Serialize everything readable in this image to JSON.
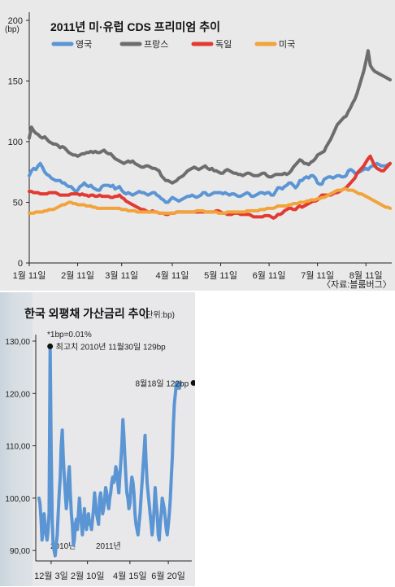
{
  "chart_data": [
    {
      "type": "line",
      "title": "2011년 미·유럽 CDS 프리미엄 추이",
      "unit_label": "(bp)",
      "source": "〈자료:블룸버그〉",
      "ylim": [
        0,
        200
      ],
      "yticks": [
        0,
        50,
        100,
        150,
        200
      ],
      "x_tick_labels": [
        "1월 11일",
        "2월 11일",
        "3월 11일",
        "4월 11일",
        "5월 11일",
        "6월 11일",
        "7월 11일",
        "8월 11일"
      ],
      "x_tick_index": [
        0,
        22,
        42,
        65,
        87,
        109,
        131,
        153
      ],
      "legend_position": "top",
      "grid": false,
      "series": [
        {
          "name": "영국",
          "color": "#5b95d3",
          "values": [
            72,
            76,
            78,
            77,
            80,
            82,
            79,
            75,
            73,
            72,
            70,
            69,
            68,
            68,
            68,
            66,
            66,
            64,
            63,
            63,
            61,
            59,
            60,
            63,
            64,
            66,
            64,
            63,
            64,
            62,
            61,
            60,
            60,
            63,
            64,
            64,
            64,
            63,
            64,
            61,
            62,
            63,
            60,
            58,
            57,
            58,
            57,
            56,
            57,
            58,
            59,
            58,
            58,
            57,
            56,
            57,
            58,
            58,
            56,
            55,
            53,
            52,
            50,
            50,
            52,
            54,
            53,
            52,
            51,
            52,
            53,
            54,
            55,
            55,
            56,
            55,
            54,
            55,
            56,
            58,
            58,
            56,
            56,
            57,
            58,
            58,
            58,
            58,
            57,
            58,
            57,
            56,
            57,
            57,
            56,
            55,
            55,
            56,
            57,
            58,
            57,
            55,
            55,
            56,
            57,
            58,
            58,
            57,
            58,
            58,
            56,
            56,
            59,
            62,
            62,
            61,
            63,
            64,
            66,
            66,
            64,
            62,
            64,
            68,
            68,
            70,
            71,
            70,
            72,
            72,
            70,
            66,
            65,
            65,
            69,
            70,
            71,
            71,
            70,
            71,
            72,
            72,
            71,
            71,
            72,
            76,
            77,
            76,
            74,
            74,
            75,
            76,
            77,
            78,
            77,
            79,
            80,
            81,
            82,
            81,
            80,
            80,
            80,
            81,
            82
          ]
        },
        {
          "name": "프랑스",
          "color": "#6d6d6d",
          "values": [
            103,
            112,
            109,
            107,
            106,
            104,
            103,
            104,
            102,
            100,
            99,
            98,
            98,
            97,
            95,
            96,
            95,
            93,
            91,
            90,
            89,
            89,
            88,
            89,
            90,
            90,
            91,
            91,
            92,
            91,
            92,
            91,
            91,
            92,
            93,
            91,
            90,
            90,
            88,
            86,
            85,
            84,
            83,
            82,
            83,
            84,
            83,
            84,
            82,
            81,
            80,
            79,
            79,
            80,
            80,
            79,
            78,
            78,
            77,
            76,
            72,
            70,
            68,
            68,
            67,
            66,
            67,
            68,
            70,
            71,
            72,
            74,
            76,
            77,
            78,
            79,
            78,
            77,
            78,
            79,
            80,
            78,
            77,
            78,
            76,
            76,
            75,
            74,
            74,
            76,
            77,
            76,
            75,
            74,
            74,
            73,
            73,
            72,
            73,
            74,
            74,
            73,
            72,
            72,
            72,
            73,
            74,
            74,
            72,
            71,
            71,
            72,
            73,
            73,
            73,
            73,
            74,
            73,
            74,
            76,
            79,
            81,
            83,
            85,
            84,
            82,
            82,
            81,
            83,
            84,
            86,
            89,
            90,
            91,
            92,
            96,
            99,
            102,
            106,
            110,
            114,
            116,
            118,
            120,
            121,
            125,
            128,
            132,
            135,
            140,
            146,
            152,
            158,
            166,
            175,
            163,
            160,
            158,
            157,
            156,
            155,
            154,
            153,
            152,
            151
          ]
        },
        {
          "name": "독일",
          "color": "#e23a32",
          "values": [
            59,
            59,
            58,
            58,
            58,
            57,
            57,
            57,
            57,
            58,
            58,
            58,
            58,
            57,
            56,
            56,
            56,
            56,
            56,
            57,
            57,
            57,
            57,
            56,
            57,
            56,
            56,
            55,
            56,
            56,
            55,
            55,
            56,
            55,
            55,
            55,
            55,
            54,
            54,
            55,
            55,
            56,
            54,
            53,
            51,
            50,
            49,
            48,
            47,
            46,
            45,
            44,
            44,
            43,
            42,
            42,
            43,
            42,
            42,
            41,
            41,
            41,
            40,
            40,
            41,
            41,
            41,
            42,
            42,
            42,
            42,
            42,
            42,
            42,
            42,
            42,
            42,
            42,
            42,
            42,
            42,
            42,
            42,
            42,
            42,
            43,
            43,
            42,
            41,
            41,
            40,
            40,
            40,
            41,
            41,
            41,
            40,
            40,
            40,
            40,
            40,
            39,
            38,
            38,
            38,
            38,
            38,
            39,
            39,
            39,
            38,
            37,
            38,
            40,
            40,
            41,
            43,
            44,
            45,
            45,
            44,
            44,
            46,
            47,
            46,
            47,
            48,
            49,
            50,
            51,
            51,
            52,
            54,
            56,
            56,
            56,
            56,
            56,
            57,
            58,
            58,
            59,
            60,
            61,
            62,
            64,
            66,
            68,
            70,
            74,
            76,
            78,
            80,
            83,
            86,
            88,
            84,
            80,
            78,
            77,
            76,
            76,
            78,
            80,
            82
          ]
        },
        {
          "name": "미국",
          "color": "#f2a33a",
          "values": [
            41,
            41,
            41,
            42,
            42,
            42,
            42,
            43,
            43,
            44,
            44,
            44,
            45,
            46,
            47,
            48,
            48,
            49,
            50,
            50,
            49,
            49,
            48,
            48,
            48,
            48,
            47,
            47,
            47,
            46,
            46,
            45,
            45,
            45,
            45,
            45,
            45,
            45,
            45,
            45,
            45,
            45,
            44,
            44,
            44,
            43,
            43,
            43,
            43,
            42,
            42,
            42,
            42,
            42,
            42,
            42,
            42,
            42,
            42,
            41,
            41,
            41,
            41,
            41,
            41,
            41,
            41,
            42,
            42,
            42,
            42,
            42,
            42,
            42,
            42,
            42,
            43,
            43,
            43,
            43,
            42,
            42,
            42,
            42,
            42,
            42,
            41,
            41,
            41,
            41,
            42,
            42,
            42,
            42,
            42,
            42,
            42,
            42,
            42,
            43,
            43,
            43,
            43,
            43,
            43,
            44,
            44,
            44,
            45,
            45,
            45,
            45,
            46,
            47,
            47,
            47,
            47,
            47,
            48,
            48,
            49,
            49,
            49,
            50,
            50,
            50,
            51,
            51,
            52,
            52,
            52,
            53,
            53,
            54,
            54,
            55,
            56,
            57,
            58,
            59,
            60,
            60,
            60,
            61,
            61,
            60,
            60,
            60,
            59,
            58,
            57,
            57,
            56,
            55,
            54,
            53,
            52,
            51,
            50,
            49,
            48,
            47,
            46,
            46,
            45
          ]
        }
      ],
      "legend": [
        "영국",
        "프랑스",
        "독일",
        "미국"
      ]
    },
    {
      "type": "line",
      "title": "한국 외평채 가산금리 추이",
      "unit_note": "(단위:bp)",
      "footnote": "*1bp=0.01%",
      "ylim": [
        88,
        130
      ],
      "yticks": [
        90,
        100,
        110,
        120,
        130
      ],
      "ytick_labels": [
        "90,00",
        "100,00",
        "110,00",
        "120,00",
        "130,00"
      ],
      "year_labels": [
        "2010년",
        "2011년"
      ],
      "x_tick_labels": [
        "12월 3일",
        "2월 10일",
        "4월 15일",
        "6월 20일"
      ],
      "x_tick_index": [
        12,
        48,
        90,
        128
      ],
      "color": "#5b95d3",
      "annotations": [
        {
          "text": "최고치 2010년 11월30일 129bp",
          "index": 11,
          "value": 129
        },
        {
          "text": "8월18일 122bp",
          "index": 153,
          "value": 122
        }
      ],
      "values": [
        100,
        99,
        96,
        92,
        94,
        97,
        95,
        93,
        92,
        94,
        97,
        129,
        110,
        96,
        91,
        90,
        89,
        91,
        93,
        97,
        101,
        104,
        110,
        113,
        108,
        104,
        101,
        98,
        100,
        104,
        106,
        101,
        97,
        95,
        91,
        92,
        95,
        96,
        94,
        97,
        100,
        97,
        95,
        93,
        96,
        98,
        95,
        94,
        96,
        97,
        95,
        95,
        94,
        96,
        98,
        101,
        99,
        97,
        96,
        95,
        100,
        101,
        99,
        97,
        98,
        100,
        102,
        101,
        99,
        98,
        100,
        101,
        103,
        104,
        103,
        104,
        106,
        105,
        103,
        101,
        104,
        107,
        110,
        115,
        112,
        108,
        104,
        101,
        100,
        98,
        99,
        102,
        104,
        103,
        101,
        97,
        95,
        94,
        93,
        95,
        97,
        100,
        103,
        106,
        109,
        112,
        107,
        103,
        101,
        99,
        97,
        95,
        93,
        95,
        98,
        102,
        99,
        97,
        93,
        92,
        95,
        97,
        100,
        99,
        98,
        96,
        94,
        93,
        95,
        97,
        100,
        104,
        108,
        114,
        118,
        120,
        122,
        121,
        122,
        121,
        122
      ]
    }
  ]
}
